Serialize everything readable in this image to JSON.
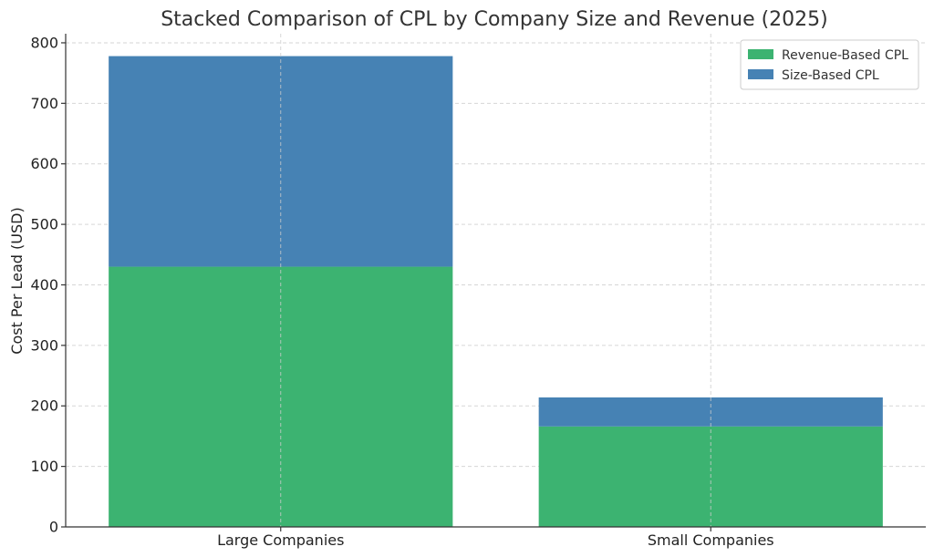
{
  "chart_data": {
    "type": "bar",
    "stacked": true,
    "title": "Stacked Comparison of CPL by Company Size and Revenue (2025)",
    "xlabel": "",
    "ylabel": "Cost Per Lead (USD)",
    "categories": [
      "Large Companies",
      "Small Companies"
    ],
    "series": [
      {
        "name": "Revenue-Based CPL",
        "values": [
          430,
          166
        ],
        "color": "#3cb371"
      },
      {
        "name": "Size-Based CPL",
        "values": [
          348,
          48
        ],
        "color": "#4682b4"
      }
    ],
    "ylim": [
      0,
      815
    ],
    "yticks": [
      0,
      100,
      200,
      300,
      400,
      500,
      600,
      700,
      800
    ],
    "grid": true,
    "legend_position": "top-right"
  }
}
